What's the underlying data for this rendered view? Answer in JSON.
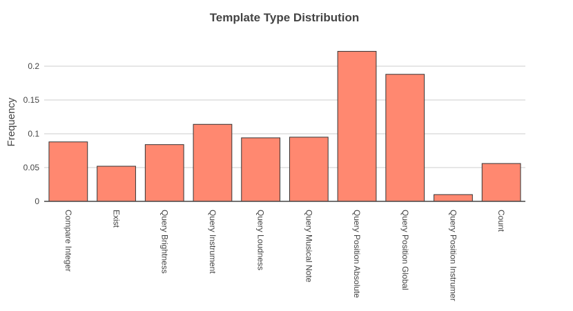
{
  "chart_data": {
    "type": "bar",
    "title": "Template Type Distribution",
    "xlabel": "",
    "ylabel": "Frequency",
    "categories": [
      "Compare Integer",
      "Exist",
      "Query Brightness",
      "Query Instrument",
      "Query Loudness",
      "Query Musical Note",
      "Query Position Absolute",
      "Query Position Global",
      "Query Position Instrumer",
      "Count"
    ],
    "values": [
      0.088,
      0.052,
      0.084,
      0.114,
      0.094,
      0.095,
      0.222,
      0.188,
      0.01,
      0.056
    ],
    "ylim": [
      0,
      0.2
    ],
    "yticks": [
      0,
      0.05,
      0.1,
      0.15,
      0.2
    ],
    "ytick_labels": [
      "0",
      "0.05",
      "0.1",
      "0.15",
      "0.2"
    ],
    "grid": true,
    "colors": {
      "bar_fill": "#ff8870",
      "bar_stroke": "#333333",
      "grid": "#e6e6e6",
      "text": "#444444"
    }
  }
}
